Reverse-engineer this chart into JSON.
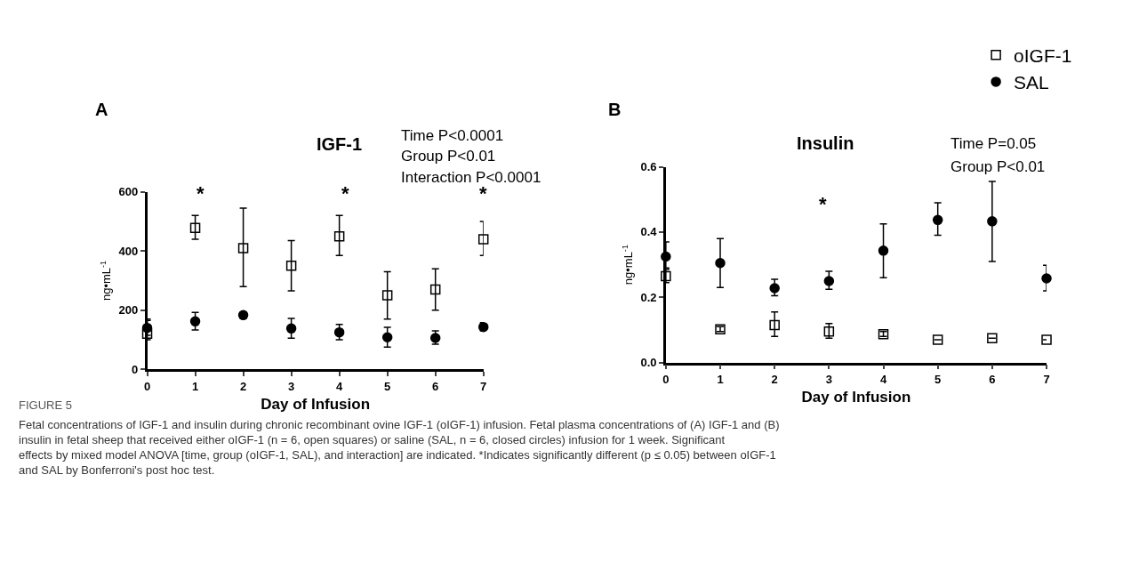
{
  "chart_data": [
    {
      "type": "scatter",
      "title": "IGF-1",
      "xlabel": "Day of Infusion",
      "ylabel": "ng•mL$^{-1}$",
      "x": [
        0,
        1,
        2,
        3,
        4,
        5,
        6,
        7
      ],
      "xlim": [
        0,
        7
      ],
      "xticks": [
        0,
        1,
        2,
        3,
        4,
        5,
        6,
        7
      ],
      "ylim": [
        0,
        600
      ],
      "yticks": [
        0,
        200,
        400,
        600
      ],
      "legend": false,
      "series": [
        {
          "color": "#000000",
          "marker": "square",
          "values": [
            120,
            478,
            410,
            350,
            450,
            250,
            270,
            440
          ],
          "errors": [
            [
              100,
              165
            ],
            [
              440,
              520
            ],
            [
              280,
              545
            ],
            [
              265,
              435
            ],
            [
              385,
              520
            ],
            [
              170,
              330
            ],
            [
              200,
              340
            ],
            [
              385,
              500
            ]
          ]
        },
        {
          "color": "#000000",
          "marker": "circle",
          "values": [
            140,
            162,
            183,
            138,
            125,
            108,
            106,
            143
          ],
          "errors": [
            [
              115,
              170
            ],
            [
              133,
              192
            ],
            [
              173,
              193
            ],
            [
              105,
              172
            ],
            [
              100,
              152
            ],
            [
              75,
              142
            ],
            [
              85,
              130
            ],
            [
              130,
              158
            ]
          ]
        }
      ],
      "annotations": [
        "A",
        "Time P<0.0001",
        "Group P<0.01",
        "Interaction P<0.0001",
        "*",
        "*",
        "*"
      ]
    },
    {
      "type": "scatter",
      "title": "Insulin",
      "xlabel": "Day of Infusion",
      "ylabel": "ng•mL$^{-1}$",
      "x": [
        0,
        1,
        2,
        3,
        4,
        5,
        6,
        7
      ],
      "xlim": [
        0,
        7
      ],
      "xticks": [
        0,
        1,
        2,
        3,
        4,
        5,
        6,
        7
      ],
      "ylim": [
        0,
        0.6
      ],
      "yticks": [
        {
          "value": 0,
          "label": "0.0"
        },
        0.2,
        0.4,
        0.6
      ],
      "legend": "top right",
      "series": [
        {
          "name": "oIGF-1",
          "color": "#000000",
          "marker": "square",
          "values": [
            0.265,
            0.102,
            0.115,
            0.095,
            0.087,
            0.07,
            0.075,
            0.07
          ],
          "errors": [
            [
              0.245,
              0.285
            ],
            [
              0.095,
              0.11
            ],
            [
              0.08,
              0.155
            ],
            [
              0.075,
              0.12
            ],
            [
              0.08,
              0.095
            ],
            null,
            null,
            null
          ]
        },
        {
          "name": "SAL",
          "color": "#000000",
          "marker": "circle",
          "values": [
            0.325,
            0.305,
            0.228,
            0.25,
            0.343,
            0.437,
            0.433,
            0.258
          ],
          "errors": [
            [
              0.29,
              0.37
            ],
            [
              0.23,
              0.38
            ],
            [
              0.205,
              0.255
            ],
            [
              0.225,
              0.28
            ],
            [
              0.26,
              0.425
            ],
            [
              0.39,
              0.49
            ],
            [
              0.31,
              0.555
            ],
            [
              0.22,
              0.298
            ]
          ]
        }
      ],
      "annotations": [
        "B",
        "Time P=0.05",
        "Group P<0.01",
        "*"
      ]
    },
    {
      "type": "other",
      "title": "FIGURE 5",
      "annotations": [
        "Fetal concentrations of IGF-1 and insulin during chronic recombinant ovine IGF-1 (oIGF-1) infusion. Fetal plasma concentrations of (A) IGF-1 and (B) insulin in fetal sheep that received either oIGF-1 (n = 6, open squares) or saline (SAL, n = 6, closed circles) infusion for 1 week. Significant effects by mixed model ANOVA [time, group (oIGF-1, SAL), and interaction] are indicated. *Indicates significantly different (p ≤ 0.05) between oIGF-1 and SAL by Bonferroni's post hoc test."
      ]
    }
  ]
}
